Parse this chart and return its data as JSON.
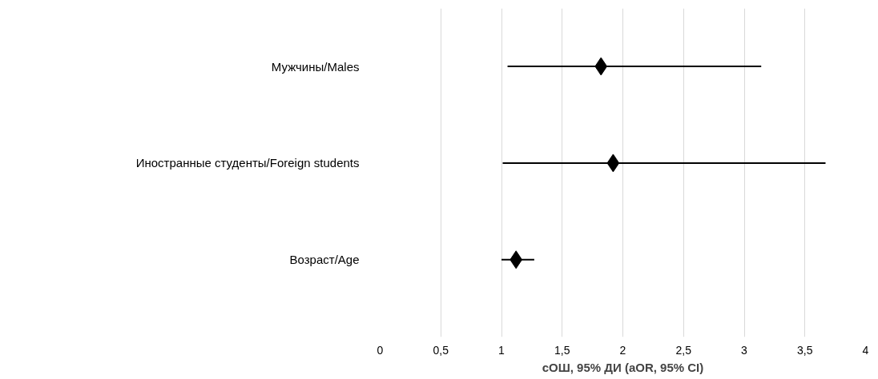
{
  "chart_data": {
    "type": "scatter",
    "orientation": "horizontal",
    "categories": [
      "Мужчины/Males",
      "Иностранные студенты/Foreign students",
      "Возраст/Age"
    ],
    "values": [
      1.82,
      1.92,
      1.12
    ],
    "errors": [
      [
        1.05,
        3.14
      ],
      [
        1.01,
        3.67
      ],
      [
        1.0,
        1.27
      ]
    ],
    "color": "#000000",
    "marker": "diamond",
    "grid": "x",
    "xlim": [
      0,
      4
    ],
    "xticks": [
      0,
      {
        "value": 0.5,
        "label": "0,5"
      },
      1,
      {
        "value": 1.5,
        "label": "1,5"
      },
      2,
      {
        "value": 2.5,
        "label": "2,5"
      },
      3,
      {
        "value": 3.5,
        "label": "3,5"
      },
      4
    ],
    "xlabel": "сОШ, 95% ДИ (aOR, 95% CI)"
  }
}
